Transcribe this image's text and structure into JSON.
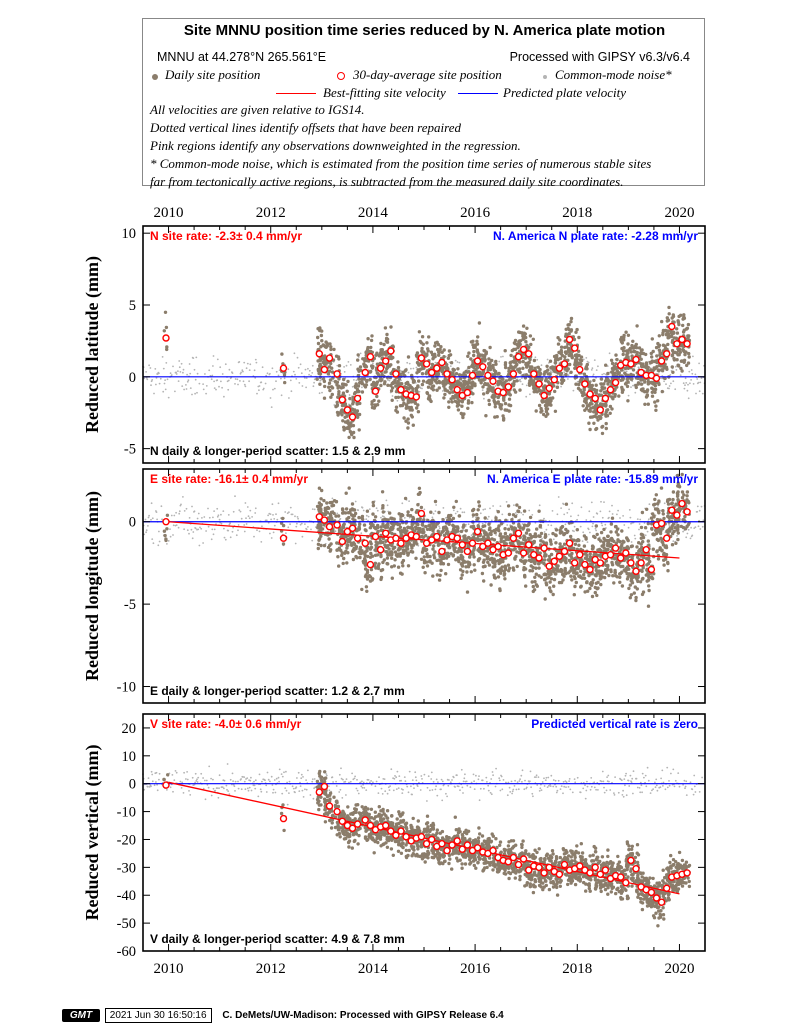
{
  "header": {
    "title": "Site MNNU position time series reduced by N. America plate motion",
    "location": "MNNU at 44.278°N 265.561°E",
    "processed": "Processed with GIPSY v6.3/v6.4",
    "legend_daily": "Daily site position",
    "legend_avg": "30-day-average site position",
    "legend_cm": "Common-mode noise*",
    "legend_best": "Best-fitting site velocity",
    "legend_pred": "Predicted plate velocity",
    "note1": "All velocities are given relative to IGS14.",
    "note2": "Dotted vertical lines identify offsets that have been repaired",
    "note3": "Pink regions identify any observations downweighted in the regression.",
    "note4": "* Common-mode noise, which is estimated from the position time series of numerous stable sites",
    "note5": "far from tectonically active regions, is subtracted from the measured daily site coordinates."
  },
  "colors": {
    "daily": "#8B7D6B",
    "common_mode": "#B4B4B4",
    "best_fit": "#FF0000",
    "predicted": "#0000FF",
    "avg_edge": "#FF0000"
  },
  "chart_data": [
    {
      "type": "scatter",
      "ylabel": "Reduced latitude (mm)",
      "site_rate": "N site rate:  -2.3± 0.4 mm/yr",
      "plate_rate": "N. America N plate rate: -2.28 mm/yr",
      "scatter": "N daily & longer-period scatter:   1.5 &   2.9 mm",
      "xlim": [
        2009.5,
        2020.5
      ],
      "ylim": [
        -6,
        10.5
      ],
      "yticks": [
        10,
        5,
        0,
        -5
      ],
      "xticks": [
        2010,
        2012,
        2014,
        2016,
        2018,
        2020
      ],
      "plate_line": [
        [
          2009.5,
          0
        ],
        [
          2020.5,
          0
        ]
      ],
      "best_fit": null,
      "avg_points": [
        [
          2009.95,
          2.7
        ],
        [
          2012.25,
          0.6
        ],
        [
          2012.95,
          1.6
        ],
        [
          2013.05,
          0.5
        ],
        [
          2013.15,
          1.3
        ],
        [
          2013.3,
          0.2
        ],
        [
          2013.4,
          -1.6
        ],
        [
          2013.5,
          -2.3
        ],
        [
          2013.6,
          -2.8
        ],
        [
          2013.7,
          -1.5
        ],
        [
          2013.85,
          0.3
        ],
        [
          2013.95,
          1.4
        ],
        [
          2014.05,
          -1.0
        ],
        [
          2014.15,
          0.6
        ],
        [
          2014.25,
          1.1
        ],
        [
          2014.35,
          1.8
        ],
        [
          2014.45,
          0.2
        ],
        [
          2014.55,
          -0.9
        ],
        [
          2014.65,
          -1.2
        ],
        [
          2014.75,
          -1.3
        ],
        [
          2014.85,
          -1.4
        ],
        [
          2014.95,
          1.3
        ],
        [
          2015.05,
          0.9
        ],
        [
          2015.15,
          0.3
        ],
        [
          2015.25,
          0.6
        ],
        [
          2015.35,
          1.0
        ],
        [
          2015.45,
          0.2
        ],
        [
          2015.55,
          -0.2
        ],
        [
          2015.65,
          -0.9
        ],
        [
          2015.75,
          -1.3
        ],
        [
          2015.85,
          -1.1
        ],
        [
          2015.95,
          0.1
        ],
        [
          2016.05,
          1.1
        ],
        [
          2016.15,
          0.7
        ],
        [
          2016.25,
          0.1
        ],
        [
          2016.35,
          -0.3
        ],
        [
          2016.45,
          -1.0
        ],
        [
          2016.55,
          -1.1
        ],
        [
          2016.65,
          -0.7
        ],
        [
          2016.75,
          0.2
        ],
        [
          2016.85,
          1.4
        ],
        [
          2016.95,
          1.9
        ],
        [
          2017.05,
          1.6
        ],
        [
          2017.15,
          0.2
        ],
        [
          2017.25,
          -0.5
        ],
        [
          2017.35,
          -1.3
        ],
        [
          2017.45,
          -0.8
        ],
        [
          2017.55,
          -0.2
        ],
        [
          2017.65,
          0.6
        ],
        [
          2017.75,
          0.9
        ],
        [
          2017.85,
          2.6
        ],
        [
          2017.95,
          2.0
        ],
        [
          2018.05,
          0.5
        ],
        [
          2018.15,
          -0.5
        ],
        [
          2018.25,
          -1.2
        ],
        [
          2018.35,
          -1.5
        ],
        [
          2018.45,
          -2.3
        ],
        [
          2018.55,
          -1.5
        ],
        [
          2018.65,
          -0.9
        ],
        [
          2018.75,
          -0.4
        ],
        [
          2018.85,
          0.8
        ],
        [
          2018.95,
          1.0
        ],
        [
          2019.05,
          0.9
        ],
        [
          2019.15,
          1.2
        ],
        [
          2019.25,
          0.3
        ],
        [
          2019.35,
          0.1
        ],
        [
          2019.45,
          0.1
        ],
        [
          2019.55,
          -0.1
        ],
        [
          2019.65,
          1.1
        ],
        [
          2019.75,
          1.6
        ],
        [
          2019.85,
          3.5
        ],
        [
          2019.95,
          2.3
        ],
        [
          2020.05,
          2.6
        ],
        [
          2020.15,
          2.3
        ]
      ]
    },
    {
      "type": "scatter",
      "ylabel": "Reduced longitude (mm)",
      "site_rate": "E site rate:  -16.1± 0.4 mm/yr",
      "plate_rate": "N. America E plate rate: -15.89 mm/yr",
      "scatter": "E daily & longer-period scatter:   1.2 &   2.7 mm",
      "xlim": [
        2009.5,
        2020.5
      ],
      "ylim": [
        -11,
        3.2
      ],
      "yticks": [
        0,
        -5,
        -10
      ],
      "xticks": [
        2010,
        2012,
        2014,
        2016,
        2018,
        2020
      ],
      "plate_line": [
        [
          2009.5,
          0
        ],
        [
          2020.5,
          0
        ]
      ],
      "best_fit": [
        [
          2010.0,
          0.0
        ],
        [
          2020.0,
          -2.2
        ]
      ],
      "avg_points": [
        [
          2009.95,
          0.0
        ],
        [
          2012.25,
          -1.0
        ],
        [
          2012.95,
          0.3
        ],
        [
          2013.05,
          0.1
        ],
        [
          2013.15,
          -0.3
        ],
        [
          2013.3,
          -0.2
        ],
        [
          2013.4,
          -1.2
        ],
        [
          2013.5,
          -0.6
        ],
        [
          2013.6,
          -0.4
        ],
        [
          2013.7,
          -1.0
        ],
        [
          2013.85,
          -1.3
        ],
        [
          2013.95,
          -2.6
        ],
        [
          2014.05,
          -0.9
        ],
        [
          2014.15,
          -1.7
        ],
        [
          2014.25,
          -0.7
        ],
        [
          2014.35,
          -1.1
        ],
        [
          2014.45,
          -1.0
        ],
        [
          2014.55,
          -1.3
        ],
        [
          2014.65,
          -1.0
        ],
        [
          2014.75,
          -0.8
        ],
        [
          2014.85,
          -0.9
        ],
        [
          2014.95,
          0.5
        ],
        [
          2015.05,
          -1.3
        ],
        [
          2015.15,
          -1.1
        ],
        [
          2015.25,
          -0.9
        ],
        [
          2015.35,
          -1.8
        ],
        [
          2015.45,
          -1.1
        ],
        [
          2015.55,
          -0.9
        ],
        [
          2015.65,
          -1.0
        ],
        [
          2015.75,
          -1.4
        ],
        [
          2015.85,
          -1.8
        ],
        [
          2015.95,
          -1.3
        ],
        [
          2016.05,
          -0.6
        ],
        [
          2016.15,
          -1.5
        ],
        [
          2016.25,
          -1.3
        ],
        [
          2016.35,
          -1.7
        ],
        [
          2016.45,
          -1.5
        ],
        [
          2016.55,
          -2.0
        ],
        [
          2016.65,
          -1.9
        ],
        [
          2016.75,
          -1.0
        ],
        [
          2016.85,
          -0.7
        ],
        [
          2016.95,
          -1.9
        ],
        [
          2017.05,
          -1.4
        ],
        [
          2017.15,
          -2.0
        ],
        [
          2017.25,
          -2.2
        ],
        [
          2017.35,
          -1.6
        ],
        [
          2017.45,
          -2.7
        ],
        [
          2017.55,
          -2.4
        ],
        [
          2017.65,
          -2.1
        ],
        [
          2017.75,
          -1.8
        ],
        [
          2017.85,
          -1.3
        ],
        [
          2017.95,
          -2.5
        ],
        [
          2018.05,
          -2.0
        ],
        [
          2018.15,
          -2.6
        ],
        [
          2018.25,
          -2.9
        ],
        [
          2018.35,
          -2.3
        ],
        [
          2018.45,
          -2.5
        ],
        [
          2018.55,
          -2.1
        ],
        [
          2018.65,
          -2.0
        ],
        [
          2018.75,
          -1.6
        ],
        [
          2018.85,
          -2.2
        ],
        [
          2018.95,
          -1.9
        ],
        [
          2019.05,
          -2.5
        ],
        [
          2019.15,
          -3.0
        ],
        [
          2019.25,
          -2.5
        ],
        [
          2019.35,
          -1.7
        ],
        [
          2019.45,
          -2.9
        ],
        [
          2019.55,
          -0.2
        ],
        [
          2019.65,
          -0.1
        ],
        [
          2019.75,
          -1.0
        ],
        [
          2019.85,
          0.7
        ],
        [
          2019.95,
          0.4
        ],
        [
          2020.05,
          1.1
        ],
        [
          2020.15,
          0.6
        ]
      ]
    },
    {
      "type": "scatter",
      "ylabel": "Reduced vertical (mm)",
      "site_rate": "V site rate:  -4.0± 0.6 mm/yr",
      "plate_rate": "Predicted vertical rate is zero",
      "scatter": "V daily & longer-period scatter:   4.9 &   7.8 mm",
      "xlim": [
        2009.5,
        2020.5
      ],
      "ylim": [
        -60,
        25
      ],
      "yticks": [
        20,
        10,
        0,
        -10,
        -20,
        -30,
        -40,
        -50,
        -60
      ],
      "xticks": [
        2010,
        2012,
        2014,
        2016,
        2018,
        2020
      ],
      "plate_line": [
        [
          2009.5,
          0
        ],
        [
          2020.5,
          0
        ]
      ],
      "best_fit": [
        [
          2010.0,
          0.5
        ],
        [
          2020.0,
          -39.5
        ]
      ],
      "avg_points": [
        [
          2009.95,
          -0.5
        ],
        [
          2012.25,
          -12.5
        ],
        [
          2012.95,
          -3.0
        ],
        [
          2013.05,
          -1.0
        ],
        [
          2013.15,
          -8.0
        ],
        [
          2013.3,
          -10.0
        ],
        [
          2013.4,
          -13.5
        ],
        [
          2013.5,
          -15.0
        ],
        [
          2013.6,
          -16.0
        ],
        [
          2013.7,
          -14.5
        ],
        [
          2013.85,
          -13.0
        ],
        [
          2013.95,
          -15.0
        ],
        [
          2014.05,
          -16.5
        ],
        [
          2014.15,
          -15.5
        ],
        [
          2014.25,
          -15.0
        ],
        [
          2014.35,
          -17.0
        ],
        [
          2014.45,
          -18.5
        ],
        [
          2014.55,
          -17.0
        ],
        [
          2014.65,
          -19.0
        ],
        [
          2014.75,
          -20.5
        ],
        [
          2014.85,
          -19.5
        ],
        [
          2014.95,
          -19.0
        ],
        [
          2015.05,
          -21.5
        ],
        [
          2015.15,
          -20.0
        ],
        [
          2015.25,
          -22.5
        ],
        [
          2015.35,
          -21.5
        ],
        [
          2015.45,
          -24.0
        ],
        [
          2015.55,
          -22.0
        ],
        [
          2015.65,
          -20.5
        ],
        [
          2015.75,
          -23.5
        ],
        [
          2015.85,
          -22.0
        ],
        [
          2015.95,
          -24.0
        ],
        [
          2016.05,
          -23.0
        ],
        [
          2016.15,
          -24.5
        ],
        [
          2016.25,
          -25.0
        ],
        [
          2016.35,
          -24.0
        ],
        [
          2016.45,
          -26.5
        ],
        [
          2016.55,
          -27.5
        ],
        [
          2016.65,
          -28.0
        ],
        [
          2016.75,
          -26.5
        ],
        [
          2016.85,
          -29.0
        ],
        [
          2016.95,
          -27.0
        ],
        [
          2017.05,
          -31.0
        ],
        [
          2017.15,
          -29.5
        ],
        [
          2017.25,
          -30.0
        ],
        [
          2017.35,
          -32.0
        ],
        [
          2017.45,
          -30.0
        ],
        [
          2017.55,
          -31.5
        ],
        [
          2017.65,
          -32.5
        ],
        [
          2017.75,
          -29.0
        ],
        [
          2017.85,
          -31.0
        ],
        [
          2017.95,
          -30.5
        ],
        [
          2018.05,
          -29.5
        ],
        [
          2018.15,
          -31.0
        ],
        [
          2018.25,
          -32.0
        ],
        [
          2018.35,
          -30.0
        ],
        [
          2018.45,
          -32.5
        ],
        [
          2018.55,
          -31.0
        ],
        [
          2018.65,
          -34.0
        ],
        [
          2018.75,
          -33.0
        ],
        [
          2018.85,
          -33.5
        ],
        [
          2018.95,
          -35.5
        ],
        [
          2019.05,
          -27.5
        ],
        [
          2019.15,
          -30.5
        ],
        [
          2019.25,
          -37.0
        ],
        [
          2019.35,
          -38.0
        ],
        [
          2019.45,
          -39.0
        ],
        [
          2019.55,
          -41.0
        ],
        [
          2019.65,
          -42.5
        ],
        [
          2019.75,
          -37.5
        ],
        [
          2019.85,
          -33.5
        ],
        [
          2019.95,
          -33.0
        ],
        [
          2020.05,
          -32.5
        ],
        [
          2020.15,
          -32.0
        ]
      ]
    }
  ],
  "footer": {
    "logo": "GMT",
    "timestamp": "2021 Jun 30 16:50:16",
    "credit": "C. DeMets/UW-Madison: Processed with GIPSY Release 6.4"
  }
}
